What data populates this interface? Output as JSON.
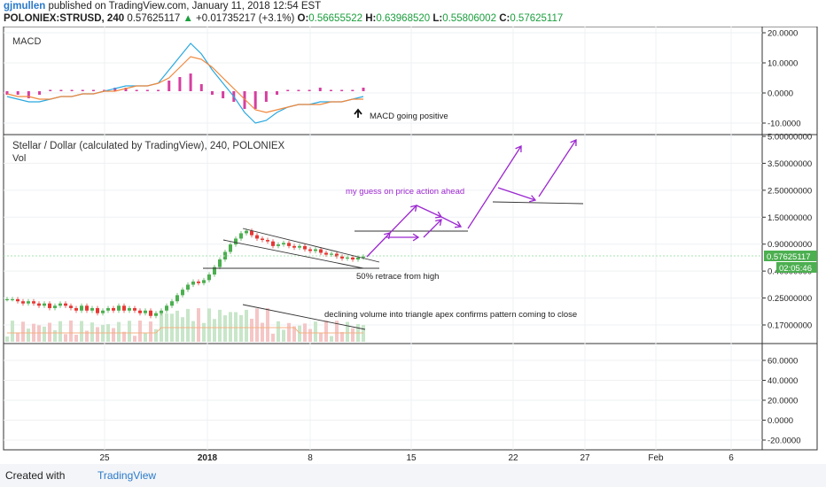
{
  "header": {
    "user": "gjmullen",
    "published": " published on TradingView.com, January 11, 2018 12:54 EST",
    "symbol": "POLONIEX:STRUSD, 240",
    "last": "0.57625117",
    "change_arrow": "▲",
    "change": "+0.01735217 (+3.1%)",
    "o_label": "O:",
    "o_val": "0.56655522",
    "h_label": "H:",
    "h_val": "0.63968520",
    "l_label": "L:",
    "l_val": "0.55806002",
    "c_label": "C:",
    "c_val": "0.57625117"
  },
  "footer": {
    "created_with": "Created with",
    "brand": "TradingView"
  },
  "colors": {
    "up": "#4caf50",
    "down": "#e53935",
    "macd_hist_up": "#d63fa0",
    "macd_line": "#29a8e0",
    "signal_line": "#f0883c",
    "annotation": "#9c27d0",
    "grid": "#eef0f3",
    "border": "#333333",
    "price_tag": "#4caf50"
  },
  "chart_data": [
    {
      "type": "line",
      "title": "MACD",
      "y_ticks": [
        "20.0000",
        "10.0000",
        "0.0000",
        "-10.0000"
      ],
      "ylim": [
        -12,
        22
      ],
      "series": [
        {
          "name": "",
          "values": [
            -2,
            -3,
            -4,
            -4,
            -3,
            -2,
            -2,
            -1,
            -1,
            0,
            1,
            2,
            2,
            2,
            3,
            8,
            13,
            18,
            14,
            8,
            3,
            -2,
            -8,
            -12,
            -11,
            -8,
            -6,
            -5,
            -5,
            -4,
            -4,
            -4,
            -3,
            -2
          ]
        },
        {
          "name": "",
          "values": [
            -1,
            -2,
            -2,
            -3,
            -3,
            -2,
            -2,
            -1,
            -1,
            0,
            0,
            1,
            2,
            2,
            3,
            5,
            9,
            13,
            12,
            9,
            5,
            1,
            -3,
            -7,
            -8,
            -7,
            -6,
            -5,
            -5,
            -5,
            -4,
            -4,
            -3,
            -3
          ]
        }
      ],
      "annotations": [
        "MACD going positive"
      ]
    },
    {
      "type": "candlestick",
      "title": "Stellar / Dollar (calculated by TradingView), 240, POLONIEX",
      "volume_label": "Vol",
      "y_ticks": [
        "5.00000000",
        "3.50000000",
        "2.50000000",
        "1.50000000",
        "0.90000000",
        "0.40000000",
        "0.25000000",
        "0.17000000"
      ],
      "scale": "log",
      "x_ticks": [
        "25",
        "2018",
        "8",
        "15",
        "22",
        "27",
        "Feb",
        "6"
      ],
      "last_price": "0.57625117",
      "countdown": "02:05:46",
      "close_path": [
        0.27,
        0.27,
        0.26,
        0.25,
        0.26,
        0.25,
        0.24,
        0.25,
        0.23,
        0.24,
        0.25,
        0.24,
        0.23,
        0.22,
        0.24,
        0.22,
        0.23,
        0.21,
        0.22,
        0.23,
        0.22,
        0.24,
        0.22,
        0.23,
        0.22,
        0.21,
        0.22,
        0.2,
        0.21,
        0.22,
        0.24,
        0.26,
        0.29,
        0.32,
        0.35,
        0.37,
        0.36,
        0.38,
        0.42,
        0.48,
        0.55,
        0.63,
        0.72,
        0.8,
        0.88,
        0.92,
        0.85,
        0.8,
        0.78,
        0.76,
        0.7,
        0.72,
        0.74,
        0.7,
        0.68,
        0.7,
        0.66,
        0.64,
        0.66,
        0.62,
        0.6,
        0.61,
        0.58,
        0.56,
        0.57,
        0.55,
        0.57,
        0.58
      ],
      "annotations": [
        "my guess on price action ahead",
        "50% retrace from high",
        "declining volume into triangle apex confirms pattern coming to close"
      ]
    },
    {
      "type": "line",
      "title": "",
      "y_ticks": [
        "60.0000",
        "40.0000",
        "20.0000",
        "0.0000",
        "-20.0000"
      ],
      "ylim": [
        -28,
        70
      ]
    }
  ]
}
